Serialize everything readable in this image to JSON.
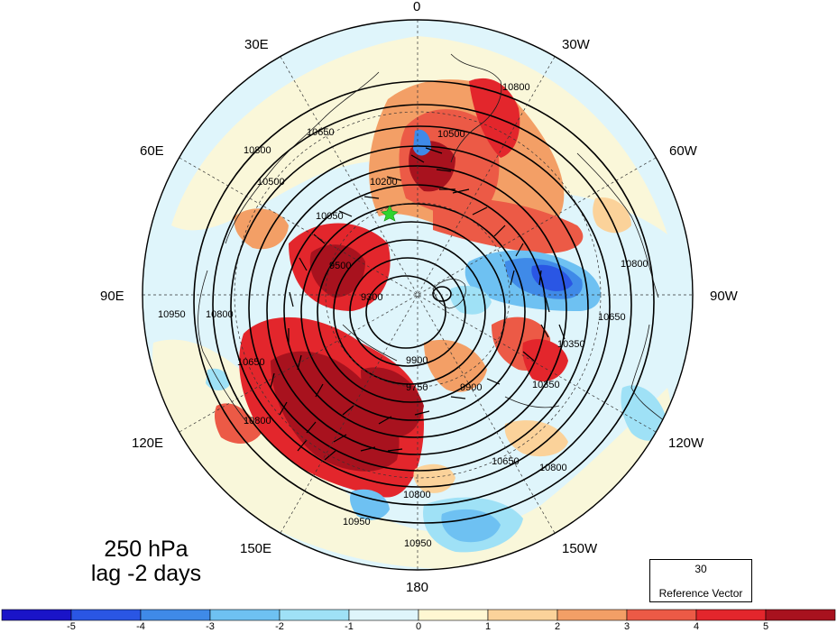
{
  "title": {
    "level": "250 hPa",
    "lag": "lag -2 days"
  },
  "longitude_labels": [
    "0",
    "30W",
    "60W",
    "90W",
    "120W",
    "150W",
    "180",
    "150E",
    "120E",
    "90E",
    "60E",
    "30E"
  ],
  "height_contour_labels": [
    "9300",
    "9500",
    "9750",
    "9900",
    "10050",
    "10200",
    "10350",
    "10500",
    "10650",
    "10800",
    "10950"
  ],
  "reference_vector": {
    "magnitude": "30",
    "caption": "Reference Vector"
  },
  "colorbar": {
    "tick_labels": [
      "-5",
      "-4",
      "-3",
      "-2",
      "-1",
      "0",
      "1",
      "2",
      "3",
      "4",
      "5"
    ],
    "colors": [
      "#1a14c8",
      "#2a56e4",
      "#3f8ae8",
      "#6ec1f2",
      "#9fe1f6",
      "#dff5fb",
      "#fff7d2",
      "#fbd29a",
      "#f39f66",
      "#ec5a46",
      "#e3262c",
      "#a8121e"
    ]
  },
  "chart_data": {
    "type": "map",
    "projection": "north polar stereographic",
    "shaded_field_range": [
      -5,
      5
    ],
    "contour_interval_note": "geopotential height contours labeled 9300–10950",
    "longitude_labels": [
      "0",
      "30W",
      "60W",
      "90W",
      "120W",
      "150W",
      "180",
      "150E",
      "120E",
      "90E",
      "60E",
      "30E"
    ]
  }
}
